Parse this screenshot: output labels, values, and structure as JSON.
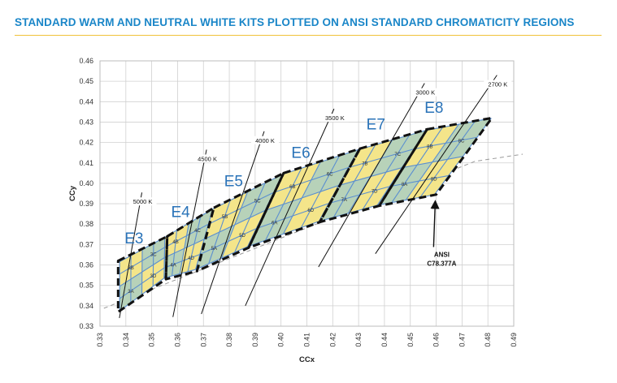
{
  "header": {
    "title": "STANDARD WARM AND NEUTRAL WHITE KITS PLOTTED ON ANSI STANDARD CHROMATICITY REGIONS"
  },
  "colors": {
    "title": "#1a86c8",
    "rule": "#f0c23a",
    "yellow_region": "#f4e58a",
    "blue_region": "#b7d2b9",
    "grid_line": "#5b8fd0",
    "outline": "#111111",
    "kit_label": "#2a73b8",
    "gridline": "#d0d0d0"
  },
  "chart_data": {
    "type": "scatter",
    "title": "",
    "xlabel": "CCx",
    "ylabel": "CCy",
    "xlim": [
      0.33,
      0.49
    ],
    "ylim": [
      0.33,
      0.46
    ],
    "grid": true,
    "x_ticks": [
      "0.33",
      "0.34",
      "0.35",
      "0.36",
      "0.37",
      "0.38",
      "0.39",
      "0.40",
      "0.41",
      "0.42",
      "0.43",
      "0.44",
      "0.45",
      "0.46",
      "0.47",
      "0.48",
      "0.49"
    ],
    "y_ticks": [
      "0.33",
      "0.34",
      "0.35",
      "0.36",
      "0.37",
      "0.38",
      "0.39",
      "0.40",
      "0.41",
      "0.42",
      "0.43",
      "0.44",
      "0.45",
      "0.46"
    ],
    "cct_lines": [
      {
        "label": "5000 K",
        "p1": [
          0.3375,
          0.334
        ],
        "p2": [
          0.3462,
          0.3955
        ]
      },
      {
        "label": "4500 K",
        "p1": [
          0.3582,
          0.3345
        ],
        "p2": [
          0.3712,
          0.4165
        ]
      },
      {
        "label": "4000 K",
        "p1": [
          0.3692,
          0.336
        ],
        "p2": [
          0.3935,
          0.4255
        ]
      },
      {
        "label": "3500 K",
        "p1": [
          0.3862,
          0.34
        ],
        "p2": [
          0.4205,
          0.4365
        ]
      },
      {
        "label": "3000 K",
        "p1": [
          0.4145,
          0.359
        ],
        "p2": [
          0.4555,
          0.449
        ]
      },
      {
        "label": "2700 K",
        "p1": [
          0.4365,
          0.3655
        ],
        "p2": [
          0.4835,
          0.453
        ]
      }
    ],
    "planckian_dashed": [
      [
        0.3315,
        0.3388
      ],
      [
        0.475,
        0.4108
      ],
      [
        0.4935,
        0.4143
      ]
    ],
    "ansi_groups": [
      {
        "name": "3",
        "quad": [
          [
            0.3376,
            0.3616
          ],
          [
            0.3551,
            0.3736
          ],
          [
            0.3548,
            0.3536
          ],
          [
            0.3376,
            0.3375
          ]
        ],
        "bins": [
          [
            "3B",
            "3C"
          ],
          [
            "3A",
            "3D"
          ]
        ]
      },
      {
        "name": "4",
        "quad": [
          [
            0.3551,
            0.3736
          ],
          [
            0.3736,
            0.3874
          ],
          [
            0.367,
            0.3578
          ],
          [
            0.3548,
            0.3536
          ]
        ],
        "bins": [
          [
            "4B",
            "4C"
          ],
          [
            "4A",
            "4D"
          ]
        ]
      },
      {
        "name": "5",
        "quad": [
          [
            0.3736,
            0.3874
          ],
          [
            0.4006,
            0.4044
          ],
          [
            0.3871,
            0.369
          ],
          [
            0.367,
            0.3578
          ]
        ],
        "bins": [
          [
            "5B",
            "5C"
          ],
          [
            "5A",
            "5D"
          ]
        ]
      },
      {
        "name": "6",
        "quad": [
          [
            0.4006,
            0.4044
          ],
          [
            0.4299,
            0.4165
          ],
          [
            0.4147,
            0.3814
          ],
          [
            0.3871,
            0.369
          ]
        ],
        "bins": [
          [
            "6B",
            "6C"
          ],
          [
            "6A",
            "6D"
          ]
        ]
      },
      {
        "name": "7",
        "quad": [
          [
            0.4299,
            0.4165
          ],
          [
            0.4562,
            0.426
          ],
          [
            0.4373,
            0.3893
          ],
          [
            0.4147,
            0.3814
          ]
        ],
        "bins": [
          [
            "7B",
            "7C"
          ],
          [
            "7A",
            "7D"
          ]
        ]
      },
      {
        "name": "8",
        "quad": [
          [
            0.4562,
            0.426
          ],
          [
            0.4813,
            0.4319
          ],
          [
            0.4593,
            0.3944
          ],
          [
            0.4373,
            0.3893
          ]
        ],
        "bins": [
          [
            "8B",
            "8C"
          ],
          [
            "8A",
            "8D"
          ]
        ]
      }
    ],
    "kit_outlines": [
      {
        "name": "E3",
        "points": [
          [
            0.337,
            0.362
          ],
          [
            0.356,
            0.374
          ],
          [
            0.3555,
            0.353
          ],
          [
            0.337,
            0.337
          ]
        ]
      },
      {
        "name": "E4",
        "points": [
          [
            0.356,
            0.374
          ],
          [
            0.374,
            0.388
          ],
          [
            0.3675,
            0.357
          ],
          [
            0.3555,
            0.353
          ]
        ]
      },
      {
        "name": "E5",
        "points": [
          [
            0.374,
            0.388
          ],
          [
            0.401,
            0.405
          ],
          [
            0.3875,
            0.3685
          ],
          [
            0.3675,
            0.357
          ]
        ]
      },
      {
        "name": "E6",
        "points": [
          [
            0.401,
            0.405
          ],
          [
            0.4305,
            0.417
          ],
          [
            0.415,
            0.381
          ],
          [
            0.3875,
            0.3685
          ]
        ]
      },
      {
        "name": "E7",
        "points": [
          [
            0.4305,
            0.417
          ],
          [
            0.4565,
            0.4265
          ],
          [
            0.438,
            0.389
          ],
          [
            0.415,
            0.381
          ]
        ]
      },
      {
        "name": "E8",
        "points": [
          [
            0.4565,
            0.4265
          ],
          [
            0.4815,
            0.432
          ],
          [
            0.46,
            0.3945
          ],
          [
            0.438,
            0.389
          ]
        ]
      }
    ],
    "kit_labels": [
      {
        "text": "E3",
        "at": [
          0.3395,
          0.3705
        ]
      },
      {
        "text": "E4",
        "at": [
          0.3575,
          0.3835
        ]
      },
      {
        "text": "E5",
        "at": [
          0.378,
          0.3985
        ]
      },
      {
        "text": "E6",
        "at": [
          0.404,
          0.4125
        ]
      },
      {
        "text": "E7",
        "at": [
          0.433,
          0.4265
        ]
      },
      {
        "text": "E8",
        "at": [
          0.4555,
          0.4345
        ]
      }
    ],
    "annotation": {
      "text_line1": "ANSI",
      "text_line2": "C78.377A",
      "point_to": [
        0.459,
        0.394
      ],
      "label_at": [
        0.459,
        0.368
      ]
    }
  }
}
